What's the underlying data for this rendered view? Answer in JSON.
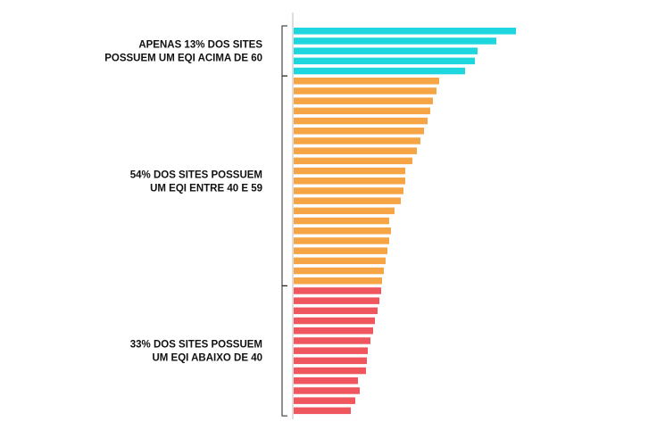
{
  "chart_data": {
    "type": "bar",
    "orientation": "horizontal",
    "title": "",
    "xlabel": "",
    "ylabel": "",
    "grid": false,
    "legend": "none",
    "groups": [
      {
        "label_lines": [
          "APENAS 13% DOS SITES",
          "POSSUEM UM EQI ACIMA DE 60"
        ],
        "color": "#1ED6DE",
        "values": [
          249,
          227,
          206,
          203,
          192
        ]
      },
      {
        "label_lines": [
          "54% DOS SITES POSSUEM",
          "UM EQI ENTRE 40 E 59"
        ],
        "color": "#F5A545",
        "values": [
          163,
          160,
          156,
          153,
          150,
          146,
          142,
          138,
          133,
          125,
          125,
          123,
          120,
          113,
          107,
          109,
          107,
          105,
          103,
          101,
          99
        ]
      },
      {
        "label_lines": [
          "33% DOS SITES POSSUEM",
          "UM EQI ABAIXO DE 40"
        ],
        "color": "#F0565E",
        "values": [
          98,
          96,
          94,
          91,
          89,
          86,
          83,
          82,
          81,
          72,
          74,
          69,
          64
        ]
      }
    ]
  }
}
